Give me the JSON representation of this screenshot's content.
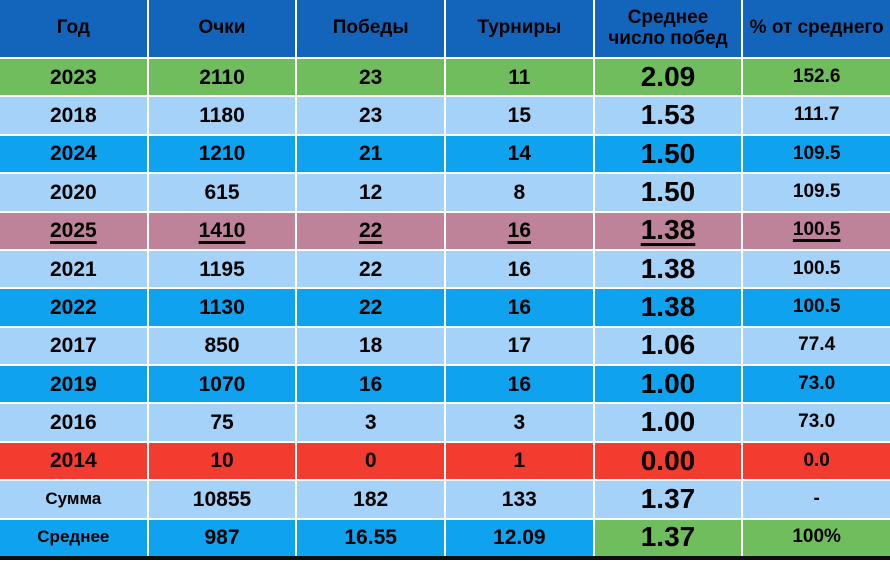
{
  "chart_data": {
    "type": "table",
    "columns": [
      "Год",
      "Очки",
      "Победы",
      "Турниры",
      "Среднее число побед",
      "% от среднего"
    ],
    "rows": [
      {
        "cells": [
          "2023",
          "2110",
          "23",
          "11",
          "2.09",
          "152.6"
        ],
        "style": "green",
        "underline": false,
        "label": false
      },
      {
        "cells": [
          "2018",
          "1180",
          "23",
          "15",
          "1.53",
          "111.7"
        ],
        "style": "light",
        "underline": false,
        "label": false
      },
      {
        "cells": [
          "2024",
          "1210",
          "21",
          "14",
          "1.50",
          "109.5"
        ],
        "style": "bright",
        "underline": false,
        "label": false
      },
      {
        "cells": [
          "2020",
          "615",
          "12",
          "8",
          "1.50",
          "109.5"
        ],
        "style": "light",
        "underline": false,
        "label": false
      },
      {
        "cells": [
          "2025",
          "1410",
          "22",
          "16",
          "1.38",
          "100.5"
        ],
        "style": "mauve",
        "underline": true,
        "label": false
      },
      {
        "cells": [
          "2021",
          "1195",
          "22",
          "16",
          "1.38",
          "100.5"
        ],
        "style": "light",
        "underline": false,
        "label": false
      },
      {
        "cells": [
          "2022",
          "1130",
          "22",
          "16",
          "1.38",
          "100.5"
        ],
        "style": "bright",
        "underline": false,
        "label": false
      },
      {
        "cells": [
          "2017",
          "850",
          "18",
          "17",
          "1.06",
          "77.4"
        ],
        "style": "light",
        "underline": false,
        "label": false
      },
      {
        "cells": [
          "2019",
          "1070",
          "16",
          "16",
          "1.00",
          "73.0"
        ],
        "style": "bright",
        "underline": false,
        "label": false
      },
      {
        "cells": [
          "2016",
          "75",
          "3",
          "3",
          "1.00",
          "73.0"
        ],
        "style": "light",
        "underline": false,
        "label": false
      },
      {
        "cells": [
          "2014",
          "10",
          "0",
          "1",
          "0.00",
          "0.0"
        ],
        "style": "red",
        "underline": false,
        "label": false
      },
      {
        "cells": [
          "Сумма",
          "10855",
          "182",
          "133",
          "1.37",
          "-"
        ],
        "style": "light",
        "underline": false,
        "label": true
      },
      {
        "cells": [
          "Среднее",
          "987",
          "16.55",
          "12.09",
          "1.37",
          "100%"
        ],
        "style": "bright",
        "underline": false,
        "label": true,
        "green_cols": [
          4,
          5
        ]
      }
    ]
  },
  "colors": {
    "header": "#1365BC",
    "green": "#6FBD5C",
    "light_blue": "#A5D2F8",
    "bright_blue": "#0FA2EF",
    "mauve": "#BE8398",
    "red": "#F43B30",
    "gridline": "#FFFFFF",
    "text": "#000000",
    "bottom_bar": "#0D0D0D"
  }
}
